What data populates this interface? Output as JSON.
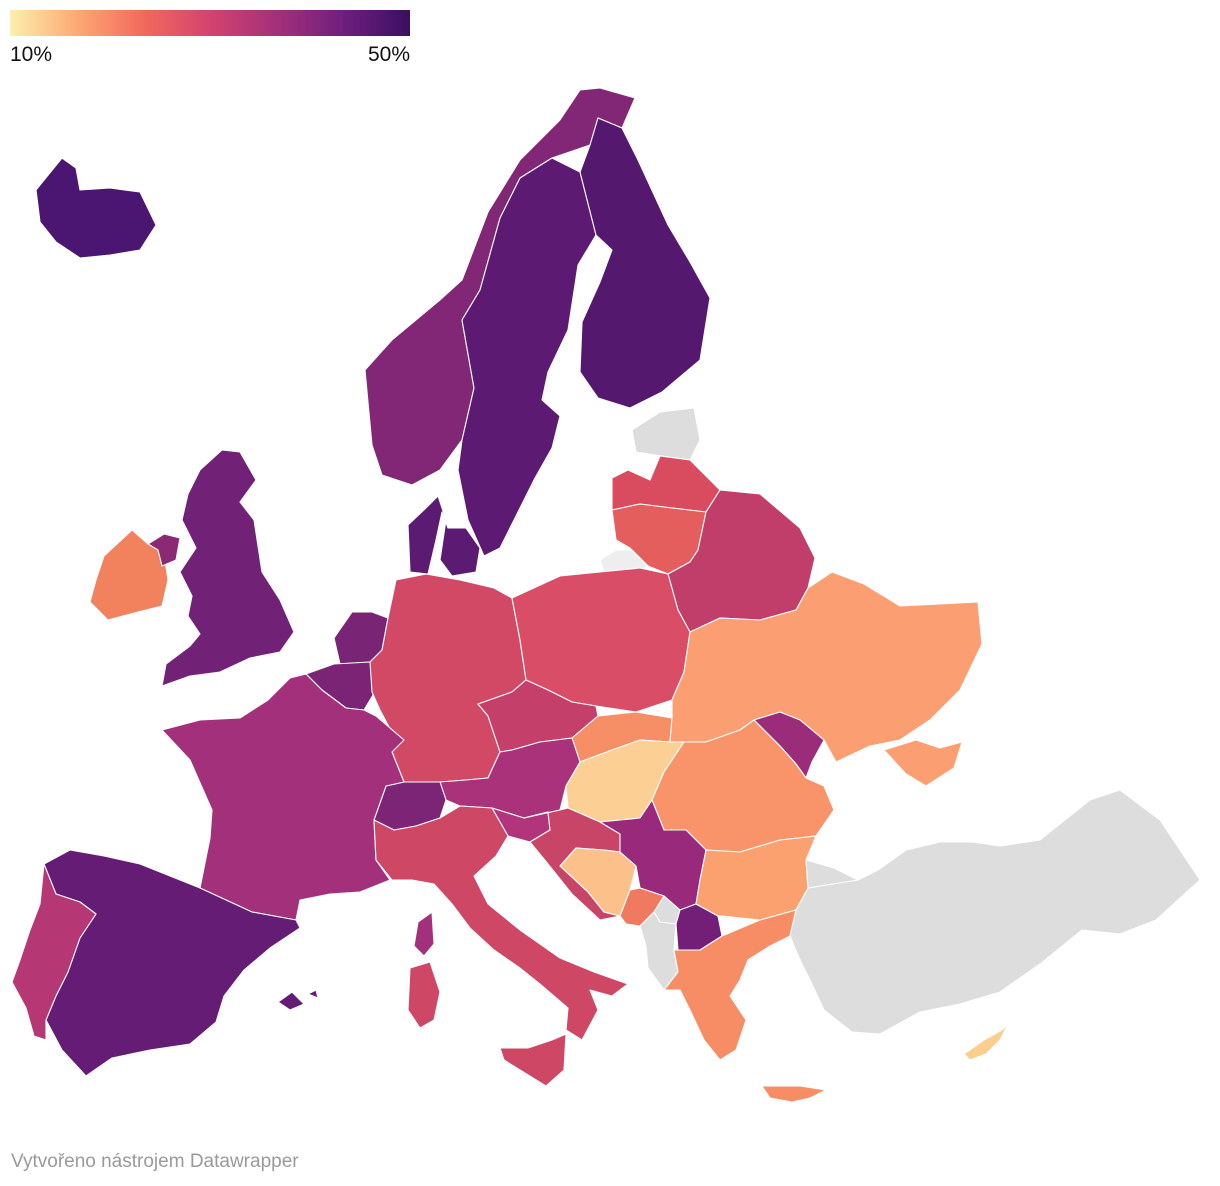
{
  "legend": {
    "min_label": "10%",
    "max_label": "50%",
    "gradient": [
      "#fcefae",
      "#fcaa74",
      "#f2695d",
      "#d3436e",
      "#a4307a",
      "#6e1f7e",
      "#3a0f62"
    ]
  },
  "credit": "Vytvořeno nástrojem Datawrapper",
  "no_data_color": "#dddddd",
  "regions": [
    {
      "id": "iceland",
      "color": "#4a1671"
    },
    {
      "id": "norway",
      "color": "#812775"
    },
    {
      "id": "sweden",
      "color": "#5d1a72"
    },
    {
      "id": "finland",
      "color": "#55186f"
    },
    {
      "id": "denmark",
      "color": "#5c1b72"
    },
    {
      "id": "estonia",
      "color": "#dddddd"
    },
    {
      "id": "latvia",
      "color": "#d94c5f"
    },
    {
      "id": "lithuania",
      "color": "#e45e5e"
    },
    {
      "id": "kaliningrad",
      "color": "#eeeeee"
    },
    {
      "id": "belarus",
      "color": "#c13d6a"
    },
    {
      "id": "ireland",
      "color": "#f2825e"
    },
    {
      "id": "northern-ireland",
      "color": "#8b2975"
    },
    {
      "id": "united-kingdom",
      "color": "#712276"
    },
    {
      "id": "netherlands",
      "color": "#7a2476"
    },
    {
      "id": "belgium",
      "color": "#7b2476"
    },
    {
      "id": "germany",
      "color": "#d24966"
    },
    {
      "id": "poland",
      "color": "#d94d66"
    },
    {
      "id": "czechia",
      "color": "#c4406b"
    },
    {
      "id": "slovakia",
      "color": "#f78f66"
    },
    {
      "id": "austria",
      "color": "#a9327a"
    },
    {
      "id": "switzerland",
      "color": "#7c2476"
    },
    {
      "id": "france",
      "color": "#a3307a"
    },
    {
      "id": "hungary",
      "color": "#fcd095"
    },
    {
      "id": "ukraine",
      "color": "#fb9f72"
    },
    {
      "id": "moldova",
      "color": "#9b2c7a"
    },
    {
      "id": "romania",
      "color": "#f99369"
    },
    {
      "id": "slovenia",
      "color": "#b2347a"
    },
    {
      "id": "croatia",
      "color": "#c94567"
    },
    {
      "id": "bosnia",
      "color": "#fcc08a"
    },
    {
      "id": "serbia",
      "color": "#99297a"
    },
    {
      "id": "montenegro",
      "color": "#ef7a60"
    },
    {
      "id": "kosovo",
      "color": "#dddddd"
    },
    {
      "id": "albania",
      "color": "#dddddd"
    },
    {
      "id": "north-macedonia",
      "color": "#741f77"
    },
    {
      "id": "bulgaria",
      "color": "#fba16f"
    },
    {
      "id": "greece",
      "color": "#f78d65"
    },
    {
      "id": "crete",
      "color": "#f78d65"
    },
    {
      "id": "turkey",
      "color": "#dddddd"
    },
    {
      "id": "cyprus",
      "color": "#fcce8d"
    },
    {
      "id": "italy",
      "color": "#ce4765"
    },
    {
      "id": "sicily",
      "color": "#ce4765"
    },
    {
      "id": "sardinia",
      "color": "#ce4765"
    },
    {
      "id": "corsica",
      "color": "#a3307a"
    },
    {
      "id": "spain",
      "color": "#641c74"
    },
    {
      "id": "balearics",
      "color": "#641c74"
    },
    {
      "id": "portugal",
      "color": "#b53773"
    }
  ]
}
